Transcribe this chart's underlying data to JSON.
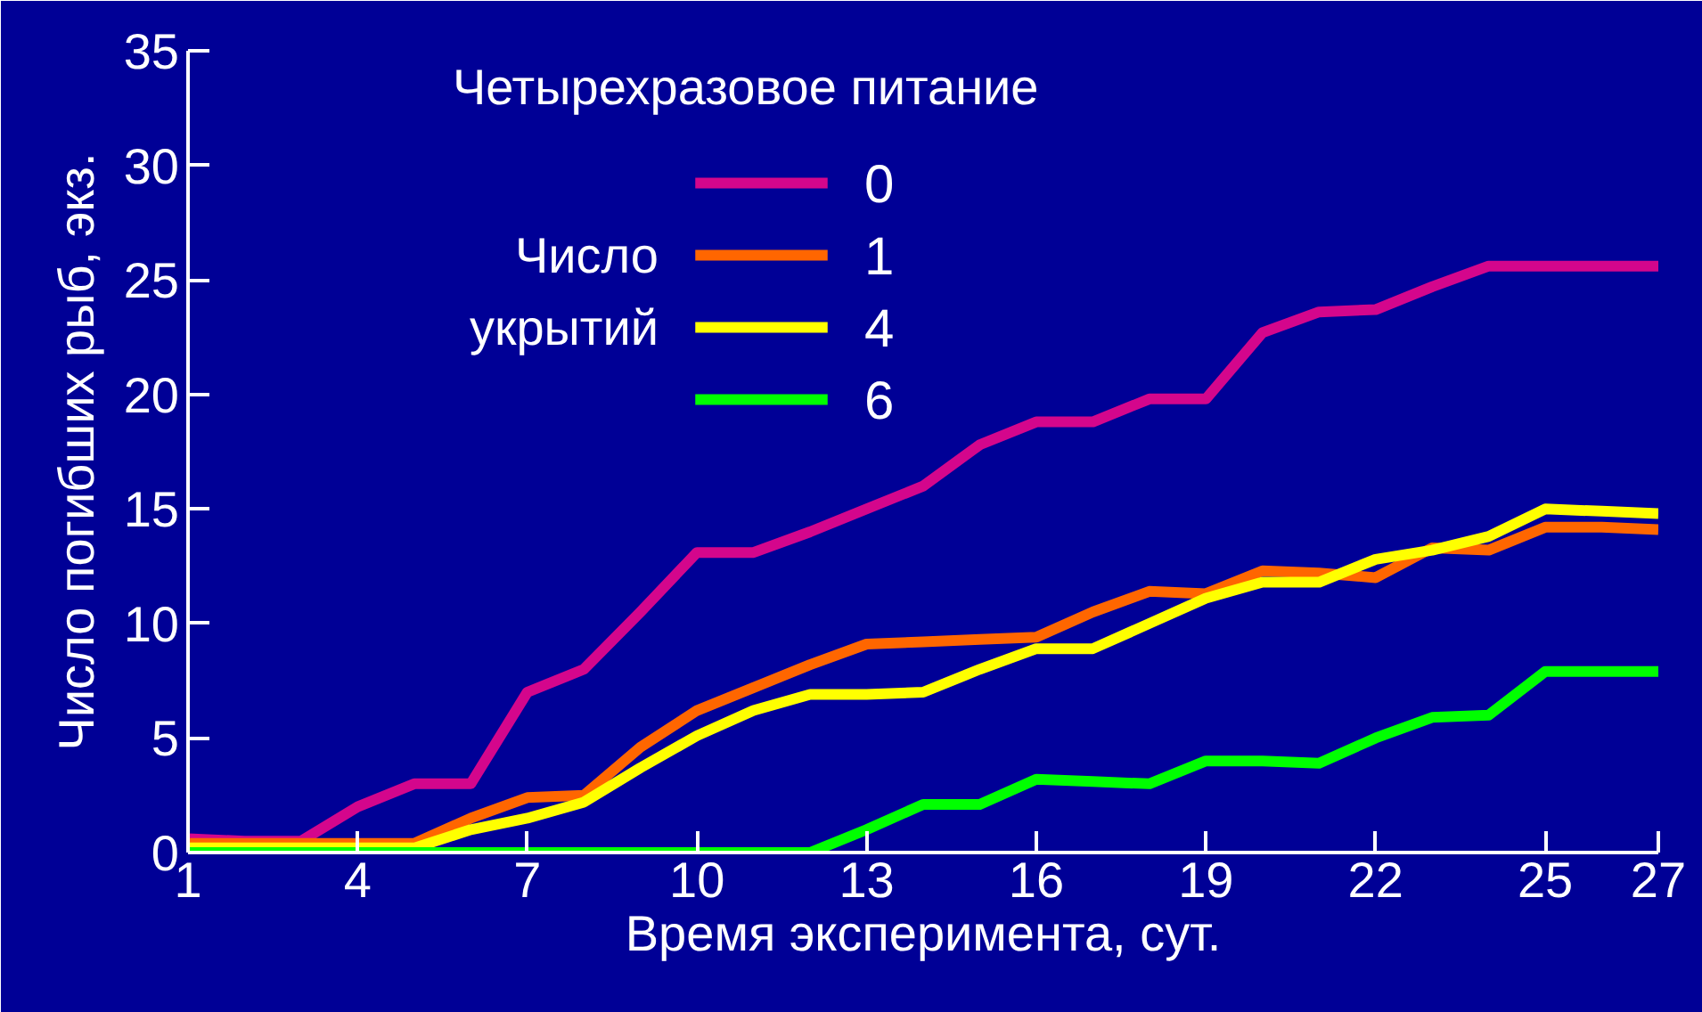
{
  "chart_data": {
    "type": "line",
    "title": "Четырехразовое питание",
    "xlabel": "Время эксперимента, сут.",
    "ylabel": "Число погибших рыб, экз.",
    "legend_title": "Число укрытий",
    "x": [
      1,
      2,
      3,
      4,
      5,
      6,
      7,
      8,
      9,
      10,
      11,
      12,
      13,
      14,
      15,
      16,
      17,
      18,
      19,
      20,
      21,
      22,
      23,
      24,
      25,
      26,
      27
    ],
    "series": [
      {
        "name": "0",
        "color": "#d4068c",
        "values": [
          0.6,
          0.5,
          0.5,
          2,
          3,
          3,
          7,
          8,
          10.5,
          13.1,
          13.1,
          14,
          15,
          16,
          17.8,
          18.8,
          18.8,
          19.8,
          19.8,
          22.7,
          23.6,
          23.7,
          24.7,
          25.6,
          25.6,
          25.6,
          25.6
        ]
      },
      {
        "name": "1",
        "color": "#ff6600",
        "values": [
          0.4,
          0.4,
          0.4,
          0.4,
          0.4,
          1.5,
          2.4,
          2.5,
          4.6,
          6.2,
          7.2,
          8.2,
          9.1,
          9.2,
          9.3,
          9.4,
          10.5,
          11.4,
          11.3,
          12.3,
          12.2,
          12.0,
          13.3,
          13.2,
          14.2,
          14.2,
          14.1
        ]
      },
      {
        "name": "4",
        "color": "#ffff00",
        "values": [
          0.2,
          0.2,
          0.2,
          0.2,
          0.2,
          1.0,
          1.5,
          2.2,
          3.7,
          5.1,
          6.2,
          6.9,
          6.9,
          7.0,
          8.0,
          8.9,
          8.9,
          10.0,
          11.1,
          11.8,
          11.8,
          12.8,
          13.2,
          13.8,
          15.0,
          14.9,
          14.8
        ]
      },
      {
        "name": "6",
        "color": "#00ff00",
        "values": [
          0,
          0,
          0,
          0,
          0,
          0,
          0,
          0,
          0,
          0,
          0,
          0,
          1.0,
          2.1,
          2.1,
          3.2,
          3.1,
          3.0,
          4.0,
          4.0,
          3.9,
          5.0,
          5.9,
          6.0,
          7.9,
          7.9,
          7.9
        ]
      }
    ],
    "xlim": [
      1,
      27
    ],
    "ylim": [
      0,
      35
    ],
    "xticks": [
      1,
      4,
      7,
      10,
      13,
      16,
      19,
      22,
      25,
      27
    ],
    "yticks": [
      0,
      5,
      10,
      15,
      20,
      25,
      30,
      35
    ],
    "legend": "top",
    "grid": false
  }
}
